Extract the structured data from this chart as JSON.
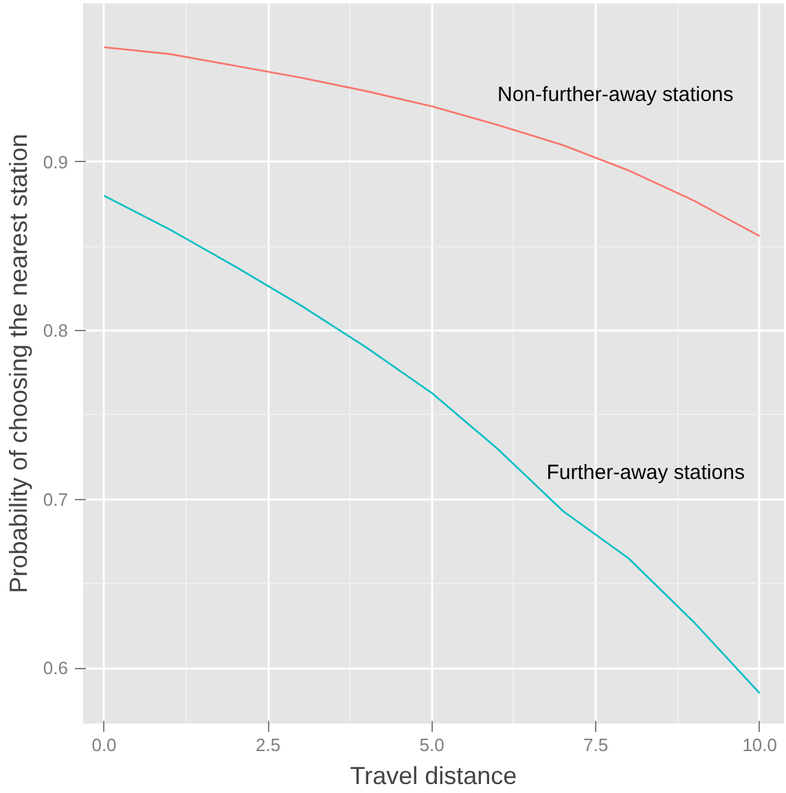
{
  "chart_data": {
    "type": "line",
    "xlabel": "Travel distance",
    "ylabel": "Probability of choosing the nearest station",
    "x": [
      0,
      1,
      2,
      3,
      4,
      5,
      6,
      7,
      8,
      9,
      10
    ],
    "series": [
      {
        "name": "Non-further-away stations",
        "color": "#f8766d",
        "values": [
          0.968,
          0.964,
          0.957,
          0.95,
          0.942,
          0.933,
          0.922,
          0.91,
          0.895,
          0.877,
          0.856
        ]
      },
      {
        "name": "Further-away stations",
        "color": "#00bfc4",
        "values": [
          0.88,
          0.86,
          0.838,
          0.815,
          0.79,
          0.763,
          0.73,
          0.693,
          0.665,
          0.627,
          0.585
        ]
      }
    ],
    "xlim": [
      -0.32,
      10.37
    ],
    "ylim": [
      0.567,
      0.994
    ],
    "xticks": [
      {
        "value": 0,
        "label": "0.0"
      },
      2.5,
      {
        "value": 5,
        "label": "5.0"
      },
      7.5,
      {
        "value": 10,
        "label": "10.0"
      }
    ],
    "yticks": [
      0.6,
      0.7,
      0.8,
      0.9
    ],
    "grid": true,
    "legend": false,
    "marker": "none",
    "line_style": "solid"
  }
}
